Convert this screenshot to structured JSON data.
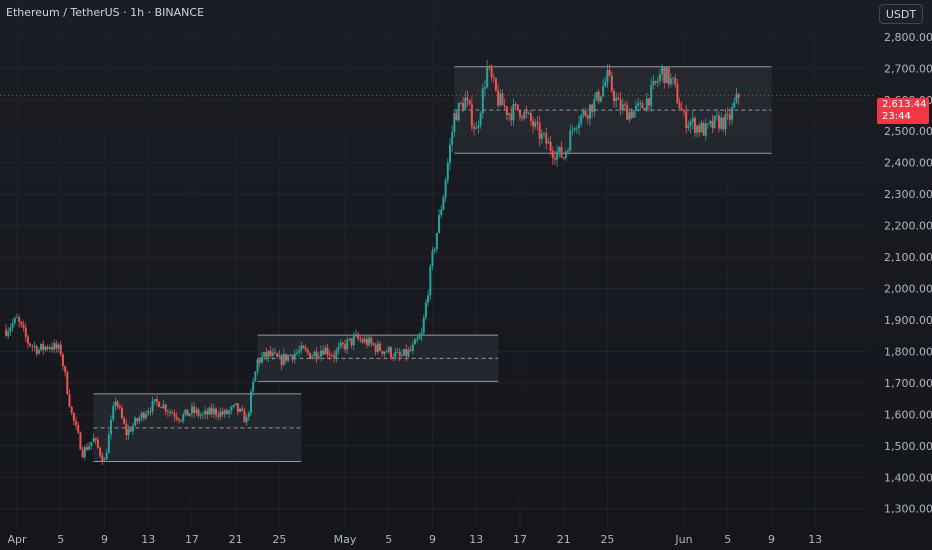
{
  "header": {
    "title": "Ethereum / TetherUS · 1h · BINANCE",
    "currency_button": "USDT"
  },
  "last_price": {
    "value": "2,613.44",
    "countdown": "23:44",
    "color": "#f23645"
  },
  "colors": {
    "up": "#26a69a",
    "down": "#ef5350",
    "range_fill": "#2a2c33",
    "range_border": "#9598a1",
    "axis_text": "#b2b5be"
  },
  "chart_data": {
    "type": "candlestick",
    "symbol": "ETHUSDT",
    "timeframe": "1h",
    "exchange": "BINANCE",
    "ylim": [
      1280,
      2860
    ],
    "y_ticks": [
      1300,
      1400,
      1500,
      1600,
      1700,
      1800,
      1900,
      2000,
      2100,
      2200,
      2300,
      2400,
      2500,
      2600,
      2700,
      2800
    ],
    "y_tick_labels": [
      "1,300.00",
      "1,400.00",
      "1,500.00",
      "1,600.00",
      "1,700.00",
      "1,800.00",
      "1,900.00",
      "2,000.00",
      "2,100.00",
      "2,200.00",
      "2,300.00",
      "2,400.00",
      "2,500.00",
      "2,600.00",
      "2,700.00",
      "2,800.00"
    ],
    "x_start": "2025-04-01",
    "x_end": "2025-06-16",
    "x_ticks": [
      {
        "date": "2025-04-01",
        "label": "Apr"
      },
      {
        "date": "2025-04-05",
        "label": "5"
      },
      {
        "date": "2025-04-09",
        "label": "9"
      },
      {
        "date": "2025-04-13",
        "label": "13"
      },
      {
        "date": "2025-04-17",
        "label": "17"
      },
      {
        "date": "2025-04-21",
        "label": "21"
      },
      {
        "date": "2025-04-25",
        "label": "25"
      },
      {
        "date": "2025-05-01",
        "label": "May"
      },
      {
        "date": "2025-05-05",
        "label": "5"
      },
      {
        "date": "2025-05-09",
        "label": "9"
      },
      {
        "date": "2025-05-13",
        "label": "13"
      },
      {
        "date": "2025-05-17",
        "label": "17"
      },
      {
        "date": "2025-05-21",
        "label": "21"
      },
      {
        "date": "2025-05-25",
        "label": "25"
      },
      {
        "date": "2025-06-01",
        "label": "Jun"
      },
      {
        "date": "2025-06-05",
        "label": "5"
      },
      {
        "date": "2025-06-09",
        "label": "9"
      },
      {
        "date": "2025-06-13",
        "label": "13"
      }
    ],
    "price_path": [
      [
        "2025-03-31",
        1870
      ],
      [
        "2025-04-01",
        1900
      ],
      [
        "2025-04-02",
        1830
      ],
      [
        "2025-04-03",
        1805
      ],
      [
        "2025-04-04",
        1820
      ],
      [
        "2025-04-05",
        1800
      ],
      [
        "2025-04-06",
        1600
      ],
      [
        "2025-04-07",
        1480
      ],
      [
        "2025-04-08",
        1520
      ],
      [
        "2025-04-09",
        1450
      ],
      [
        "2025-04-10",
        1650
      ],
      [
        "2025-04-11",
        1540
      ],
      [
        "2025-04-12",
        1580
      ],
      [
        "2025-04-13",
        1620
      ],
      [
        "2025-04-14",
        1640
      ],
      [
        "2025-04-15",
        1610
      ],
      [
        "2025-04-16",
        1590
      ],
      [
        "2025-04-17",
        1610
      ],
      [
        "2025-04-18",
        1595
      ],
      [
        "2025-04-19",
        1610
      ],
      [
        "2025-04-20",
        1600
      ],
      [
        "2025-04-21",
        1620
      ],
      [
        "2025-04-22",
        1580
      ],
      [
        "2025-04-23",
        1770
      ],
      [
        "2025-04-24",
        1790
      ],
      [
        "2025-04-25",
        1770
      ],
      [
        "2025-04-26",
        1790
      ],
      [
        "2025-04-27",
        1800
      ],
      [
        "2025-04-28",
        1790
      ],
      [
        "2025-04-29",
        1810
      ],
      [
        "2025-04-30",
        1790
      ],
      [
        "2025-05-01",
        1820
      ],
      [
        "2025-05-02",
        1840
      ],
      [
        "2025-05-03",
        1830
      ],
      [
        "2025-05-04",
        1810
      ],
      [
        "2025-05-05",
        1800
      ],
      [
        "2025-05-06",
        1780
      ],
      [
        "2025-05-07",
        1800
      ],
      [
        "2025-05-08",
        1850
      ],
      [
        "2025-05-09",
        2100
      ],
      [
        "2025-05-10",
        2300
      ],
      [
        "2025-05-11",
        2550
      ],
      [
        "2025-05-12",
        2600
      ],
      [
        "2025-05-13",
        2500
      ],
      [
        "2025-05-14",
        2700
      ],
      [
        "2025-05-15",
        2600
      ],
      [
        "2025-05-16",
        2560
      ],
      [
        "2025-05-17",
        2570
      ],
      [
        "2025-05-18",
        2530
      ],
      [
        "2025-05-19",
        2480
      ],
      [
        "2025-05-20",
        2440
      ],
      [
        "2025-05-21",
        2420
      ],
      [
        "2025-05-22",
        2530
      ],
      [
        "2025-05-23",
        2560
      ],
      [
        "2025-05-24",
        2600
      ],
      [
        "2025-05-25",
        2670
      ],
      [
        "2025-05-26",
        2580
      ],
      [
        "2025-05-27",
        2560
      ],
      [
        "2025-05-28",
        2570
      ],
      [
        "2025-05-29",
        2620
      ],
      [
        "2025-05-30",
        2690
      ],
      [
        "2025-05-31",
        2650
      ],
      [
        "2025-06-01",
        2540
      ],
      [
        "2025-06-02",
        2520
      ],
      [
        "2025-06-03",
        2500
      ],
      [
        "2025-06-04",
        2530
      ],
      [
        "2025-06-05",
        2530
      ],
      [
        "2025-06-06",
        2613.44
      ]
    ],
    "ranges": [
      {
        "x0": "2025-04-08",
        "x1": "2025-04-27",
        "top": 1665,
        "bottom": 1450,
        "mid": 1557
      },
      {
        "x0": "2025-04-23",
        "x1": "2025-05-15",
        "top": 1852,
        "bottom": 1705,
        "mid": 1778
      },
      {
        "x0": "2025-05-11",
        "x1": "2025-06-09",
        "top": 2705,
        "bottom": 2430,
        "mid": 2567
      }
    ]
  }
}
